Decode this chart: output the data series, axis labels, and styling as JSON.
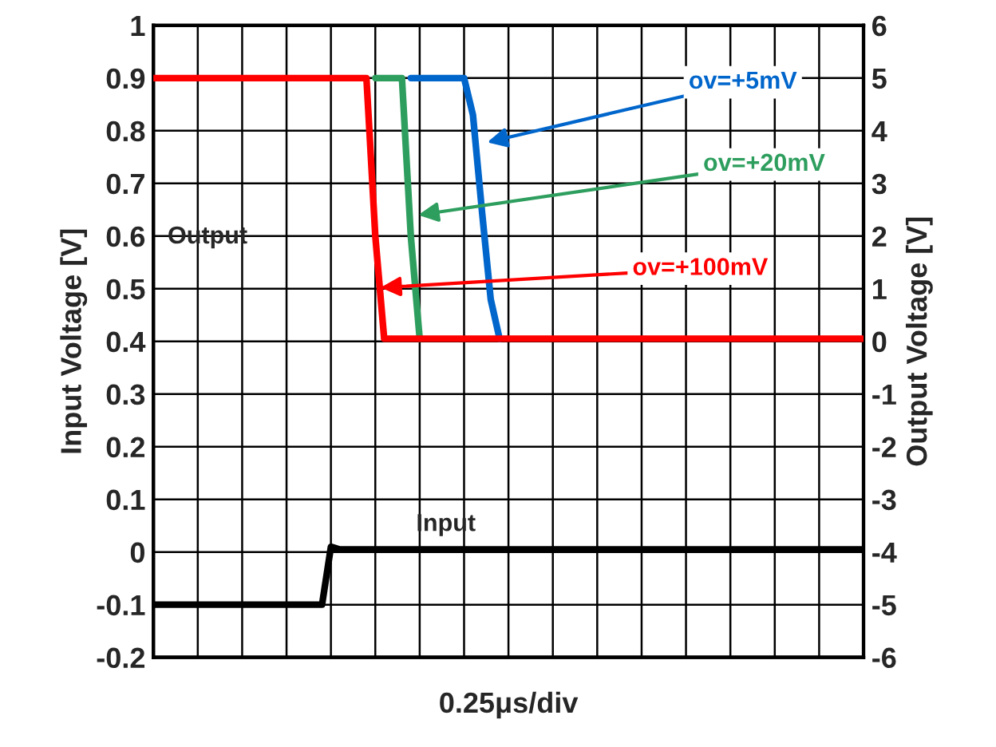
{
  "chart_data": {
    "type": "line",
    "xlabel": "0.25μs/div",
    "ylabel": "Input Voltage [V]",
    "y2label": "Output Voltage [V]",
    "categories": [
      null,
      null,
      null,
      null,
      null,
      null,
      null,
      null,
      null,
      null,
      null,
      null,
      null,
      null,
      null,
      null,
      null,
      null,
      null,
      null,
      null,
      null,
      null,
      null,
      null,
      null,
      null,
      null,
      null,
      null,
      null,
      null,
      null,
      null,
      null,
      null,
      null,
      null,
      null,
      null,
      null,
      null,
      null,
      null,
      null,
      null,
      null,
      null,
      null,
      null,
      null,
      null,
      null,
      null,
      null,
      null,
      null,
      null,
      null,
      null,
      null,
      null,
      null,
      null,
      null,
      null,
      null,
      null,
      null,
      null,
      null,
      null,
      null,
      null,
      null,
      null,
      null,
      null,
      null,
      null,
      null
    ],
    "ylim": [
      -0.2,
      1
    ],
    "yticks": [
      -0.2,
      -0.1,
      0,
      0.1,
      0.2,
      0.3,
      0.4,
      0.5,
      0.6,
      0.7,
      0.8,
      0.9,
      1
    ],
    "y2lim": [
      -6,
      6
    ],
    "y2ticks": [
      -6,
      -5,
      -4,
      -3,
      -2,
      -1,
      0,
      1,
      2,
      3,
      4,
      5,
      6
    ],
    "grid": true,
    "marker": "none",
    "line_style": "solid",
    "series": [
      {
        "color": "#000000",
        "values": [
          -0.1,
          -0.1,
          -0.1,
          -0.1,
          -0.1,
          -0.1,
          -0.1,
          -0.1,
          -0.1,
          -0.1,
          -0.1,
          -0.1,
          -0.1,
          -0.1,
          -0.1,
          -0.1,
          -0.1,
          -0.1,
          -0.1,
          -0.1,
          0.01,
          0.005,
          0.005,
          0.005,
          0.005,
          0.005,
          0.005,
          0.005,
          0.005,
          0.005,
          0.005,
          0.005,
          0.005,
          0.005,
          0.005,
          0.005,
          0.005,
          0.005,
          0.005,
          0.005,
          0.005,
          0.005,
          0.005,
          0.005,
          0.005,
          0.005,
          0.005,
          0.005,
          0.005,
          0.005,
          0.005,
          0.005,
          0.005,
          0.005,
          0.005,
          0.005,
          0.005,
          0.005,
          0.005,
          0.005,
          0.005,
          0.005,
          0.005,
          0.005,
          0.005,
          0.005,
          0.005,
          0.005,
          0.005,
          0.005,
          0.005,
          0.005,
          0.005,
          0.005,
          0.005,
          0.005,
          0.005,
          0.005,
          0.005,
          0.005,
          0.005
        ]
      },
      {
        "color": "#0066cc",
        "axis": "y2",
        "values": [
          null,
          null,
          null,
          null,
          null,
          null,
          null,
          null,
          null,
          null,
          null,
          null,
          null,
          null,
          null,
          null,
          null,
          null,
          null,
          null,
          null,
          null,
          null,
          null,
          null,
          null,
          null,
          null,
          null,
          5,
          5,
          5,
          5,
          5,
          5,
          5,
          4.3,
          2.5,
          0.8,
          0.05,
          null,
          null,
          null,
          null,
          null,
          null,
          null,
          null,
          null,
          null,
          null,
          null,
          null,
          null,
          null,
          null,
          null,
          null,
          null,
          null,
          null,
          null,
          null,
          null,
          null,
          null,
          null,
          null,
          null,
          null,
          null,
          null,
          null,
          null,
          null,
          null,
          null,
          null,
          null,
          null,
          null
        ]
      },
      {
        "color": "#2e9e5e",
        "axis": "y2",
        "values": [
          null,
          null,
          null,
          null,
          null,
          null,
          null,
          null,
          null,
          null,
          null,
          null,
          null,
          null,
          null,
          null,
          null,
          null,
          null,
          null,
          null,
          null,
          null,
          null,
          null,
          5,
          5,
          5,
          5,
          2,
          0.05,
          null,
          null,
          null,
          null,
          null,
          null,
          null,
          null,
          null,
          null,
          null,
          null,
          null,
          null,
          null,
          null,
          null,
          null,
          null,
          null,
          null,
          null,
          null,
          null,
          null,
          null,
          null,
          null,
          null,
          null,
          null,
          null,
          null,
          null,
          null,
          null,
          null,
          null,
          null,
          null,
          null,
          null,
          null,
          null,
          null,
          null,
          null,
          null,
          null,
          null
        ]
      },
      {
        "color": "#ff0000",
        "axis": "y2",
        "values": [
          5,
          5,
          5,
          5,
          5,
          5,
          5,
          5,
          5,
          5,
          5,
          5,
          5,
          5,
          5,
          5,
          5,
          5,
          5,
          5,
          5,
          5,
          5,
          5,
          5,
          2,
          0.05,
          0.05,
          0.05,
          0.05,
          0.05,
          0.05,
          0.05,
          0.05,
          0.05,
          0.05,
          0.05,
          0.05,
          0.05,
          0.05,
          0.05,
          0.05,
          0.05,
          0.05,
          0.05,
          0.05,
          0.05,
          0.05,
          0.05,
          0.05,
          0.05,
          0.05,
          0.05,
          0.05,
          0.05,
          0.05,
          0.05,
          0.05,
          0.05,
          0.05,
          0.05,
          0.05,
          0.05,
          0.05,
          0.05,
          0.05,
          0.05,
          0.05,
          0.05,
          0.05,
          0.05,
          0.05,
          0.05,
          0.05,
          0.05,
          0.05,
          0.05,
          0.05,
          0.05,
          0.05,
          0.05
        ]
      }
    ],
    "annotations": [
      "Output",
      "ov=+5mV",
      "ov=+20mV",
      "ov=+100mV",
      "Input"
    ]
  }
}
